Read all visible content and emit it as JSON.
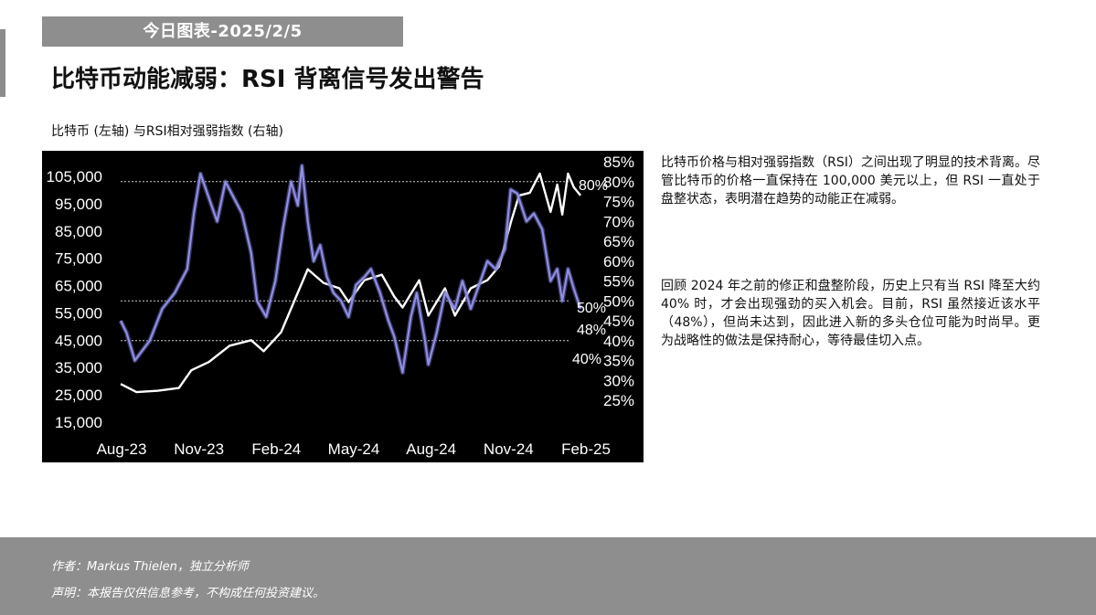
{
  "header": {
    "date_banner": "今日图表-2025/2/5",
    "title": "比特币动能减弱：RSI 背离信号发出警告",
    "subtitle": "比特币 (左轴) 与RSI相对强弱指数 (右轴)"
  },
  "body": {
    "paragraph_1": "比特币价格与相对强弱指数（RSI）之间出现了明显的技术背离。尽管比特币的价格一直保持在 100,000 美元以上，但 RSI 一直处于盘整状态，表明潜在趋势的动能正在减弱。",
    "paragraph_2": "回顾 2024 年之前的修正和盘整阶段，历史上只有当 RSI 降至大约 40% 时，才会出现强劲的买入机会。目前，RSI 虽然接近该水平（48%），但尚未达到，因此进入新的多头仓位可能为时尚早。更为战略性的做法是保持耐心，等待最佳切入点。"
  },
  "footer": {
    "author": "作者：Markus Thielen，独立分析师",
    "disclaimer": "声明：本报告仅供信息参考，不构成任何投资建议。"
  },
  "colors": {
    "banner_bg": "#8e8e8e",
    "chart_bg": "#000000",
    "btc_line": "#ffffff",
    "rsi_line": "#8f8ee0",
    "footer_bg": "#8e8e8e"
  },
  "chart_data": {
    "type": "line",
    "title": "",
    "x_tick_labels": [
      "Aug-23",
      "Nov-23",
      "Feb-24",
      "May-24",
      "Aug-24",
      "Nov-24",
      "Feb-25"
    ],
    "y_left": {
      "ticks": [
        "105,000",
        "95,000",
        "85,000",
        "75,000",
        "65,000",
        "55,000",
        "45,000",
        "35,000",
        "25,000",
        "15,000"
      ],
      "ylim": [
        15000,
        105000
      ]
    },
    "y_right": {
      "ticks": [
        "85%",
        "80%",
        "75%",
        "70%",
        "65%",
        "60%",
        "55%",
        "50%",
        "45%",
        "40%",
        "35%",
        "30%",
        "25%"
      ],
      "ylim": [
        25,
        85
      ]
    },
    "reference_lines": [
      {
        "value": 80,
        "label": "80%"
      },
      {
        "value": 50,
        "label": "50%"
      },
      {
        "value": 40,
        "label": "40%"
      }
    ],
    "current_label": "48%",
    "series": [
      {
        "axis": "left",
        "color": "#ffffff",
        "x": [
          "2023-08-01",
          "2023-08-20",
          "2023-09-15",
          "2023-10-10",
          "2023-10-25",
          "2023-11-15",
          "2023-12-10",
          "2024-01-05",
          "2024-01-20",
          "2024-02-10",
          "2024-02-28",
          "2024-03-13",
          "2024-04-01",
          "2024-04-20",
          "2024-05-01",
          "2024-05-20",
          "2024-06-10",
          "2024-06-25",
          "2024-07-05",
          "2024-07-25",
          "2024-08-05",
          "2024-08-25",
          "2024-09-06",
          "2024-09-25",
          "2024-10-15",
          "2024-10-29",
          "2024-11-12",
          "2024-11-22",
          "2024-12-05",
          "2024-12-17",
          "2024-12-30",
          "2025-01-07",
          "2025-01-13",
          "2025-01-20",
          "2025-01-27",
          "2025-02-04"
        ],
        "values": [
          29000,
          26000,
          26500,
          27500,
          34000,
          37000,
          43000,
          45000,
          41000,
          48000,
          61000,
          71000,
          66000,
          64000,
          59000,
          67000,
          69000,
          61000,
          57000,
          67000,
          54000,
          64000,
          54000,
          64000,
          67000,
          72000,
          88000,
          98000,
          99000,
          106000,
          92000,
          102000,
          91000,
          106000,
          101000,
          98000
        ]
      },
      {
        "axis": "right",
        "color": "#8f8ee0",
        "x": [
          "2023-08-01",
          "2023-08-08",
          "2023-08-18",
          "2023-09-05",
          "2023-09-20",
          "2023-10-05",
          "2023-10-20",
          "2023-10-28",
          "2023-11-05",
          "2023-11-15",
          "2023-11-25",
          "2023-12-05",
          "2023-12-15",
          "2023-12-25",
          "2024-01-05",
          "2024-01-12",
          "2024-01-23",
          "2024-02-03",
          "2024-02-12",
          "2024-02-22",
          "2024-03-01",
          "2024-03-06",
          "2024-03-13",
          "2024-03-20",
          "2024-03-28",
          "2024-04-05",
          "2024-04-13",
          "2024-04-22",
          "2024-05-01",
          "2024-05-10",
          "2024-05-20",
          "2024-05-28",
          "2024-06-08",
          "2024-06-18",
          "2024-06-25",
          "2024-07-05",
          "2024-07-15",
          "2024-07-22",
          "2024-08-01",
          "2024-08-05",
          "2024-08-15",
          "2024-08-25",
          "2024-09-06",
          "2024-09-15",
          "2024-09-25",
          "2024-10-05",
          "2024-10-15",
          "2024-10-25",
          "2024-11-05",
          "2024-11-12",
          "2024-11-20",
          "2024-12-01",
          "2024-12-10",
          "2024-12-20",
          "2024-12-30",
          "2025-01-07",
          "2025-01-13",
          "2025-01-20",
          "2025-01-27",
          "2025-02-04"
        ],
        "values": [
          45,
          42,
          35,
          40,
          48,
          52,
          58,
          72,
          82,
          76,
          70,
          80,
          76,
          72,
          62,
          50,
          46,
          55,
          68,
          80,
          74,
          84,
          70,
          60,
          64,
          56,
          52,
          50,
          46,
          54,
          56,
          58,
          52,
          45,
          41,
          32,
          46,
          52,
          40,
          34,
          42,
          52,
          48,
          55,
          48,
          54,
          60,
          58,
          63,
          78,
          77,
          70,
          72,
          68,
          55,
          58,
          50,
          58,
          53,
          48
        ]
      }
    ]
  }
}
